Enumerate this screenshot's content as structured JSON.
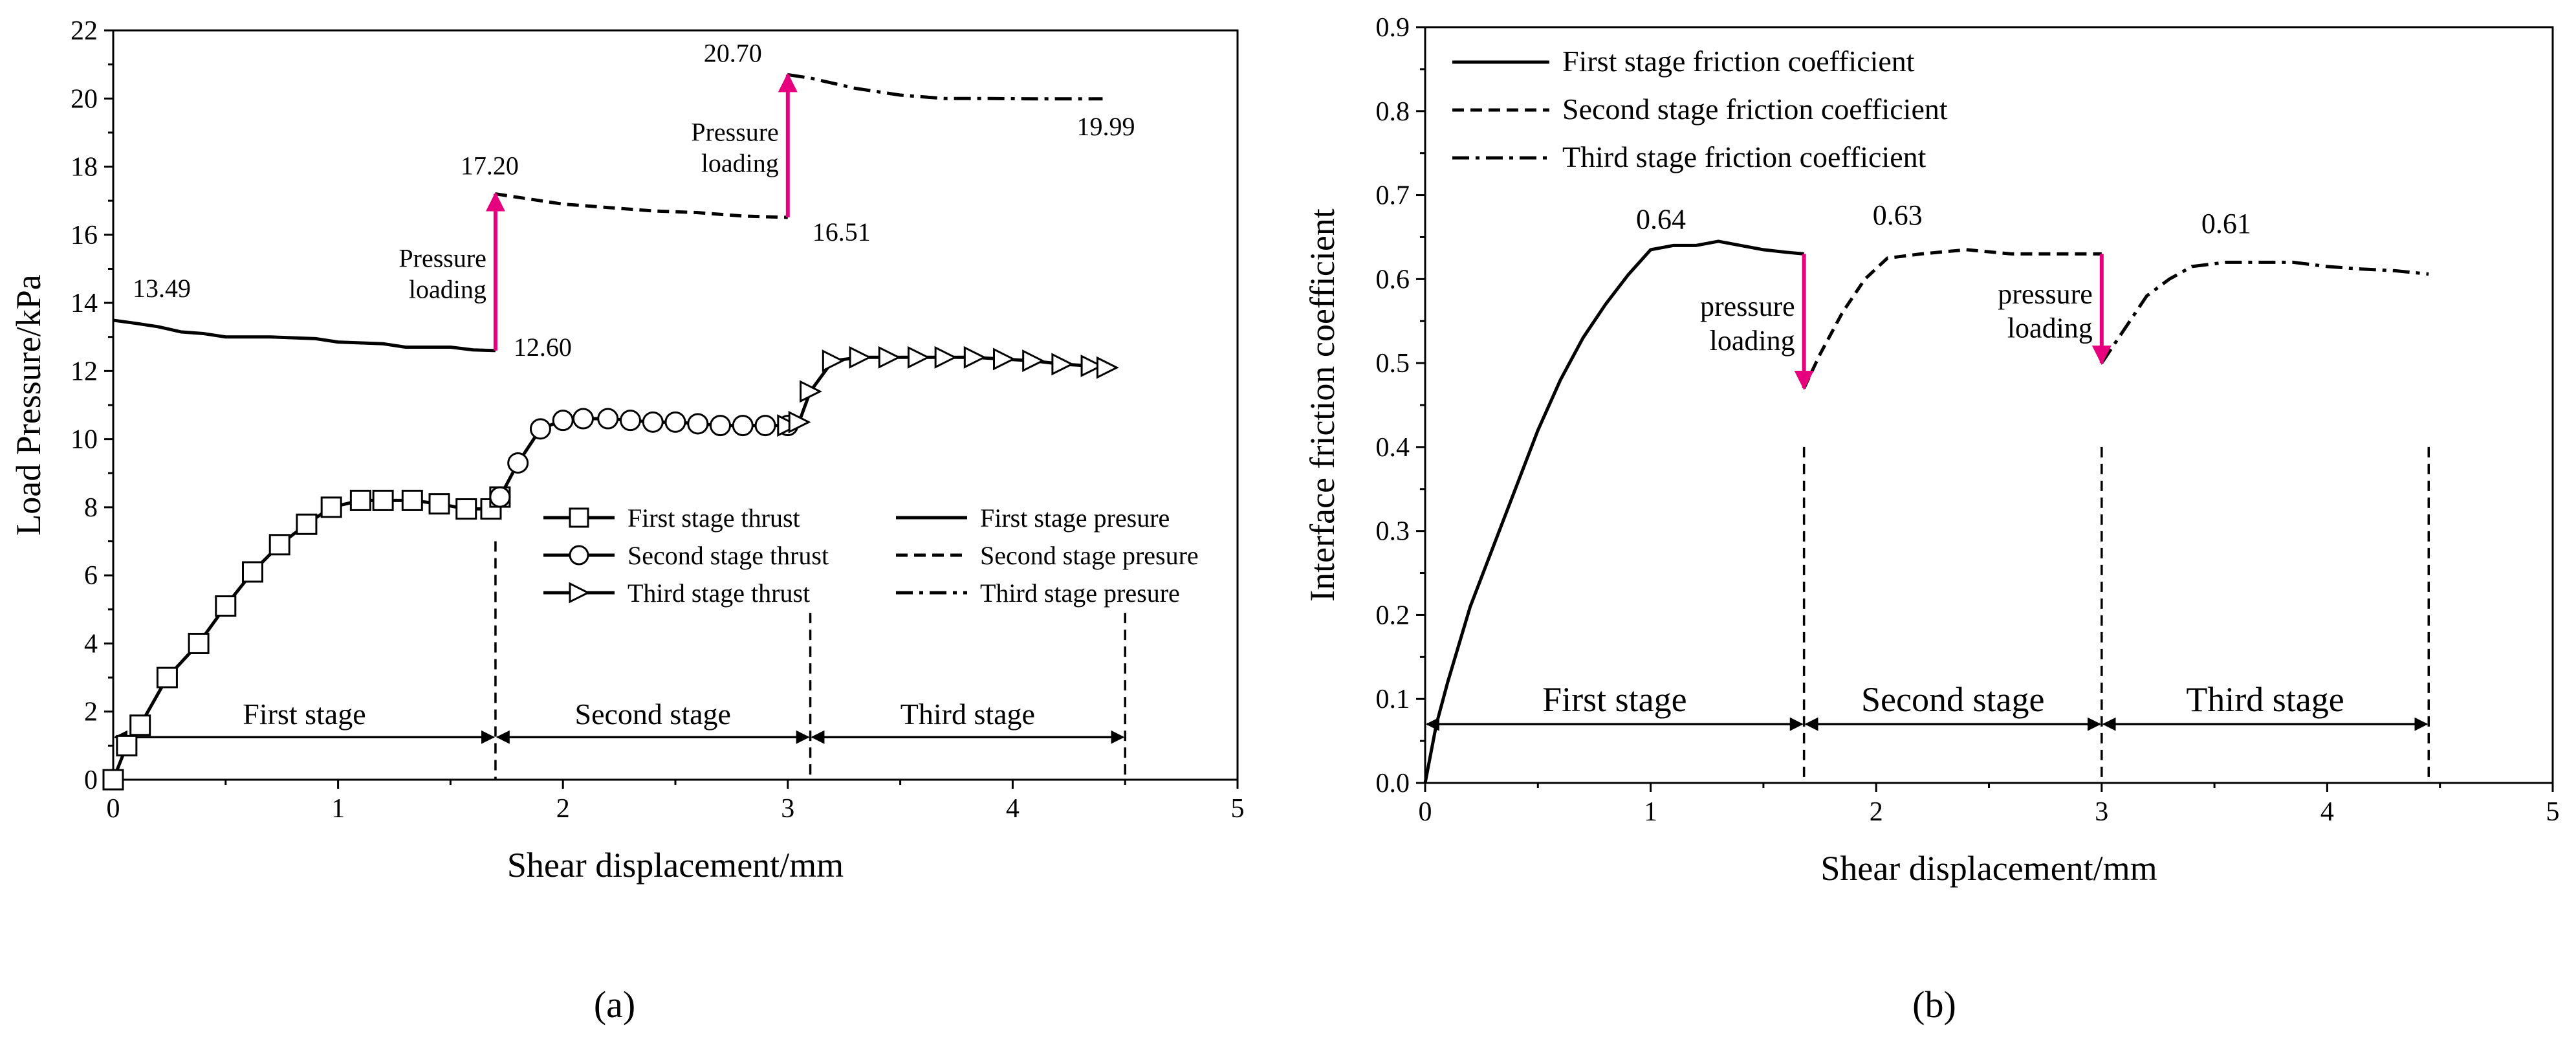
{
  "chart_data": [
    {
      "panel": "(a)",
      "type": "line",
      "xlabel": "Shear displacement/mm",
      "ylabel": "Load Pressure/kPa",
      "xlim": [
        0,
        5
      ],
      "ylim": [
        0,
        22
      ],
      "xticks": [
        "0",
        "1",
        "2",
        "3",
        "4",
        "5"
      ],
      "yticks": [
        "0",
        "2",
        "4",
        "6",
        "8",
        "10",
        "12",
        "14",
        "16",
        "18",
        "20",
        "22"
      ],
      "grid": false,
      "legend_position": "center-right",
      "series": [
        {
          "name": "First stage thrust",
          "style": "solid",
          "marker": "square",
          "x": [
            0,
            0.06,
            0.12,
            0.24,
            0.38,
            0.5,
            0.62,
            0.74,
            0.86,
            0.97,
            1.1,
            1.2,
            1.33,
            1.45,
            1.57,
            1.68,
            1.72
          ],
          "y": [
            0,
            1.0,
            1.6,
            3.0,
            4.0,
            5.1,
            6.1,
            6.9,
            7.5,
            8.0,
            8.2,
            8.2,
            8.2,
            8.1,
            7.95,
            7.95,
            8.3
          ]
        },
        {
          "name": "Second stage thrust",
          "style": "solid",
          "marker": "circle",
          "x": [
            1.72,
            1.8,
            1.9,
            2.0,
            2.09,
            2.2,
            2.3,
            2.4,
            2.5,
            2.6,
            2.7,
            2.8,
            2.9,
            3.0
          ],
          "y": [
            8.3,
            9.3,
            10.3,
            10.55,
            10.6,
            10.6,
            10.55,
            10.5,
            10.5,
            10.45,
            10.4,
            10.4,
            10.4,
            10.4
          ]
        },
        {
          "name": "Third stage thrust",
          "style": "solid",
          "marker": "triangle-right",
          "x": [
            3.0,
            3.05,
            3.1,
            3.2,
            3.32,
            3.45,
            3.58,
            3.7,
            3.83,
            3.96,
            4.09,
            4.22,
            4.35,
            4.42
          ],
          "y": [
            10.4,
            10.5,
            11.4,
            12.3,
            12.4,
            12.4,
            12.4,
            12.4,
            12.4,
            12.35,
            12.3,
            12.2,
            12.15,
            12.1
          ]
        },
        {
          "name": "First stage presure",
          "style": "solid",
          "marker": "none",
          "x": [
            0,
            0.1,
            0.2,
            0.3,
            0.4,
            0.5,
            0.7,
            0.9,
            1.0,
            1.2,
            1.3,
            1.5,
            1.6,
            1.7
          ],
          "y": [
            13.49,
            13.4,
            13.3,
            13.15,
            13.1,
            13.0,
            13.0,
            12.95,
            12.85,
            12.8,
            12.7,
            12.7,
            12.62,
            12.6
          ]
        },
        {
          "name": "Second stage presure",
          "style": "dashed",
          "marker": "none",
          "x": [
            1.7,
            1.8,
            1.9,
            2.0,
            2.2,
            2.4,
            2.6,
            2.8,
            3.0
          ],
          "y": [
            17.2,
            17.1,
            17.0,
            16.9,
            16.8,
            16.7,
            16.65,
            16.55,
            16.51
          ]
        },
        {
          "name": "Third stage presure",
          "style": "dash-dot",
          "marker": "none",
          "x": [
            3.0,
            3.1,
            3.3,
            3.5,
            3.7,
            3.9,
            4.1,
            4.3,
            4.4
          ],
          "y": [
            20.7,
            20.6,
            20.3,
            20.1,
            20.0,
            20.0,
            19.99,
            19.99,
            19.99
          ]
        }
      ],
      "value_labels": [
        {
          "text": "13.49",
          "x": 0,
          "y": 13.49
        },
        {
          "text": "12.60",
          "x": 1.7,
          "y": 12.6
        },
        {
          "text": "17.20",
          "x": 1.7,
          "y": 17.2
        },
        {
          "text": "16.51",
          "x": 3.0,
          "y": 16.51
        },
        {
          "text": "20.70",
          "x": 3.0,
          "y": 20.7
        },
        {
          "text": "19.99",
          "x": 4.4,
          "y": 19.99
        }
      ],
      "pressure_arrows": [
        {
          "x": 1.7,
          "from": 12.6,
          "to": 17.2,
          "label_lines": [
            "Pressure",
            "loading"
          ]
        },
        {
          "x": 3.0,
          "from": 16.51,
          "to": 20.7,
          "label_lines": [
            "Pressure",
            "loading"
          ]
        }
      ],
      "stage_boundaries": [
        {
          "x": 1.7,
          "top": 7.0
        },
        {
          "x": 3.1,
          "top": 4.9
        },
        {
          "x": 4.5,
          "top": 4.9
        }
      ],
      "stages": [
        {
          "label": "First stage",
          "from": 0,
          "to": 1.7
        },
        {
          "label": "Second stage",
          "from": 1.7,
          "to": 3.1
        },
        {
          "label": "Third stage",
          "from": 3.1,
          "to": 4.5
        }
      ],
      "stage_arrow_y": 1.25,
      "accent_color": "#e6007e"
    },
    {
      "panel": "(b)",
      "type": "line",
      "xlabel": "Shear displacement/mm",
      "ylabel": "Interface friction coefficient",
      "xlim": [
        0,
        5
      ],
      "ylim": [
        0,
        0.9
      ],
      "xticks": [
        "0",
        "1",
        "2",
        "3",
        "4",
        "5"
      ],
      "yticks": [
        "0.0",
        "0.1",
        "0.2",
        "0.3",
        "0.4",
        "0.5",
        "0.6",
        "0.7",
        "0.8",
        "0.9"
      ],
      "grid": false,
      "legend_position": "top-left",
      "series": [
        {
          "name": "First stage friction coefficient",
          "style": "solid",
          "x": [
            0,
            0.05,
            0.1,
            0.2,
            0.3,
            0.4,
            0.5,
            0.6,
            0.7,
            0.8,
            0.9,
            1.0,
            1.1,
            1.2,
            1.3,
            1.4,
            1.5,
            1.6,
            1.68
          ],
          "y": [
            0,
            0.07,
            0.12,
            0.21,
            0.28,
            0.35,
            0.42,
            0.48,
            0.53,
            0.57,
            0.605,
            0.635,
            0.64,
            0.64,
            0.645,
            0.64,
            0.635,
            0.632,
            0.63
          ]
        },
        {
          "name": "Second stage friction coefficient",
          "style": "dashed",
          "x": [
            1.68,
            1.75,
            1.85,
            1.95,
            2.05,
            2.2,
            2.4,
            2.6,
            2.8,
            3.0
          ],
          "y": [
            0.47,
            0.51,
            0.56,
            0.6,
            0.625,
            0.63,
            0.635,
            0.63,
            0.63,
            0.63
          ]
        },
        {
          "name": "Third stage friction coefficient",
          "style": "dash-dot",
          "x": [
            3.0,
            3.1,
            3.2,
            3.3,
            3.4,
            3.55,
            3.7,
            3.85,
            4.0,
            4.15,
            4.3,
            4.45
          ],
          "y": [
            0.5,
            0.54,
            0.58,
            0.6,
            0.615,
            0.62,
            0.62,
            0.62,
            0.615,
            0.612,
            0.61,
            0.606
          ]
        }
      ],
      "value_labels": [
        {
          "text": "0.64",
          "x": 1.05,
          "y": 0.66
        },
        {
          "text": "0.63",
          "x": 2.3,
          "y": 0.665
        },
        {
          "text": "0.61",
          "x": 3.7,
          "y": 0.655
        }
      ],
      "pressure_arrows": [
        {
          "x": 1.68,
          "from": 0.63,
          "to": 0.47,
          "label_lines": [
            "pressure",
            "loading"
          ]
        },
        {
          "x": 3.0,
          "from": 0.63,
          "to": 0.5,
          "label_lines": [
            "pressure",
            "loading"
          ]
        }
      ],
      "stage_boundaries": [
        {
          "x": 1.68,
          "top": 0.4
        },
        {
          "x": 3.0,
          "top": 0.4
        },
        {
          "x": 4.45,
          "top": 0.4
        }
      ],
      "stages": [
        {
          "label": "First stage",
          "from": 0,
          "to": 1.68
        },
        {
          "label": "Second stage",
          "from": 1.68,
          "to": 3.0
        },
        {
          "label": "Third stage",
          "from": 3.0,
          "to": 4.45
        }
      ],
      "stage_arrow_y": 0.07,
      "accent_color": "#e6007e"
    }
  ]
}
